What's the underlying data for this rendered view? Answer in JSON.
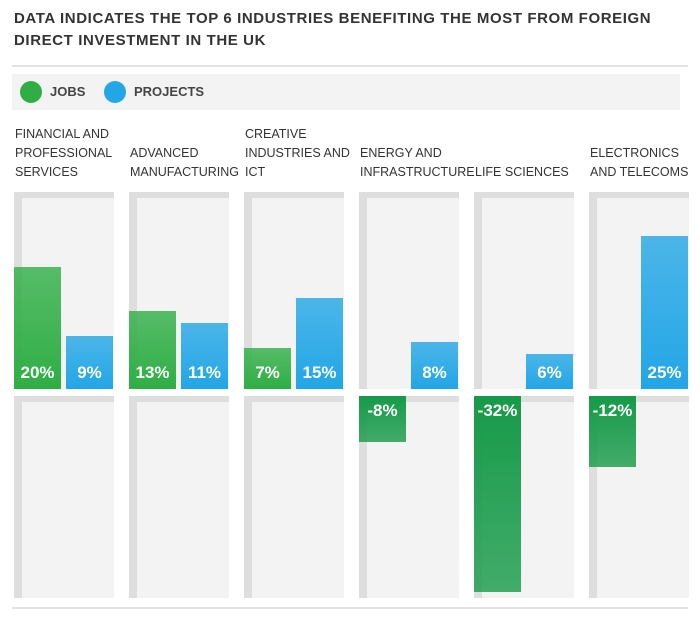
{
  "chart_data": {
    "type": "bar",
    "title": "DATA INDICATES THE TOP 6 INDUSTRIES BENEFITING THE MOST FROM FOREIGN DIRECT INVESTMENT IN THE UK",
    "categories": [
      "FINANCIAL AND PROFESSIONAL SERVICES",
      "ADVANCED MANUFACTURING",
      "CREATIVE INDUSTRIES AND ICT",
      "ENERGY AND INFRASTRUCTURE",
      "LIFE SCIENCES",
      "ELECTRONICS AND TELECOMS"
    ],
    "series": [
      {
        "name": "JOBS",
        "color": "#2fae45",
        "values": [
          20,
          13,
          7,
          -8,
          -32,
          -12
        ],
        "value_labels": [
          "20%",
          "13%",
          "7%",
          "-8%",
          "-32%",
          "-12%"
        ]
      },
      {
        "name": "PROJECTS",
        "color": "#22a6e6",
        "values": [
          9,
          11,
          15,
          8,
          6,
          25
        ],
        "value_labels": [
          "9%",
          "11%",
          "15%",
          "8%",
          "6%",
          "25%"
        ]
      }
    ],
    "ylim": [
      -33,
      32
    ]
  }
}
